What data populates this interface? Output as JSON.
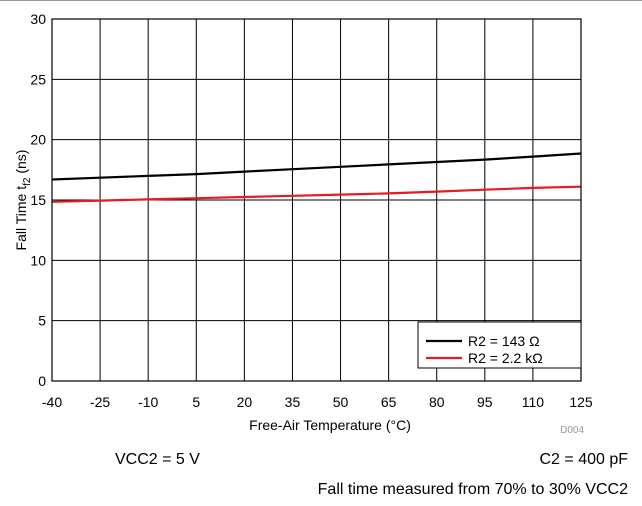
{
  "chart_data": {
    "type": "line",
    "xlabel": "Free-Air Temperature (°C)",
    "ylabel": {
      "base": "Fall Time t",
      "subscript": "f2",
      "suffix": " (ns)"
    },
    "x_ticks": [
      -40,
      -25,
      -10,
      5,
      20,
      35,
      50,
      65,
      80,
      95,
      110,
      125
    ],
    "y_ticks": [
      0,
      5,
      10,
      15,
      20,
      25,
      30
    ],
    "xlim": [
      -40,
      125
    ],
    "ylim": [
      0,
      30
    ],
    "grid": true,
    "legend_position": "bottom-right",
    "series": [
      {
        "name": "R2 = 143 Ω",
        "color": "#000000",
        "points": [
          [
            -40,
            16.7
          ],
          [
            -25,
            16.85
          ],
          [
            -10,
            17.0
          ],
          [
            5,
            17.15
          ],
          [
            20,
            17.35
          ],
          [
            35,
            17.55
          ],
          [
            50,
            17.75
          ],
          [
            65,
            17.95
          ],
          [
            80,
            18.15
          ],
          [
            95,
            18.35
          ],
          [
            110,
            18.6
          ],
          [
            125,
            18.85
          ]
        ]
      },
      {
        "name": "R2 = 2.2 kΩ",
        "color": "#e8191f",
        "points": [
          [
            -40,
            14.85
          ],
          [
            -25,
            14.95
          ],
          [
            -10,
            15.05
          ],
          [
            5,
            15.15
          ],
          [
            20,
            15.25
          ],
          [
            35,
            15.35
          ],
          [
            50,
            15.45
          ],
          [
            65,
            15.55
          ],
          [
            80,
            15.7
          ],
          [
            95,
            15.85
          ],
          [
            110,
            16.0
          ],
          [
            125,
            16.1
          ]
        ]
      }
    ]
  },
  "doc_id": "D004",
  "notes": {
    "vcc2": "VCC2 = 5 V",
    "c2": "C2 = 400 pF",
    "fall_time": "Fall time measured from 70% to 30% VCC2"
  }
}
